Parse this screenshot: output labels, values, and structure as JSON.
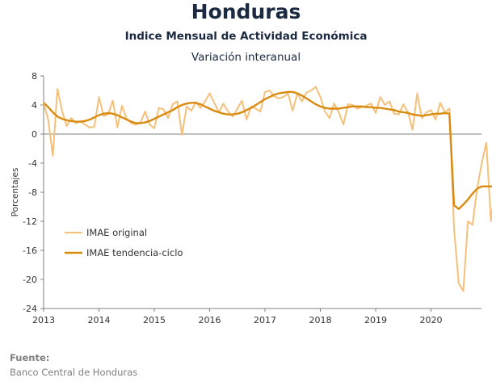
{
  "header": {
    "title": "Honduras",
    "subtitle": "Indice Mensual de  Actividad Económica",
    "subtitle2": "Variación interanual"
  },
  "source": {
    "label": "Fuente:",
    "text": "Banco Central de Honduras"
  },
  "colors": {
    "original": "#f5c07a",
    "trend": "#d98a10",
    "axis": "#808080",
    "text": "#1b2a40"
  },
  "chart_data": {
    "type": "line",
    "title": "Honduras",
    "ylabel": "Porcentajes",
    "xlabel": "",
    "ylim": [
      -24,
      8
    ],
    "yticks": [
      8,
      4,
      0,
      -4,
      -8,
      -12,
      -16,
      -20,
      -24
    ],
    "xticks": [
      "2013",
      "2014",
      "2015",
      "2016",
      "2017",
      "2018",
      "2019",
      "2020"
    ],
    "x_start_year": 2013,
    "grid": false,
    "legend_position": "lower-left",
    "series": [
      {
        "name": "IMAE original",
        "values": [
          4.2,
          2.0,
          -3.0,
          6.2,
          3.2,
          1.1,
          2.2,
          1.5,
          1.8,
          1.3,
          0.9,
          1.0,
          5.1,
          2.5,
          2.7,
          4.6,
          0.9,
          3.9,
          2.1,
          1.5,
          1.3,
          1.6,
          3.1,
          1.3,
          0.8,
          3.6,
          3.4,
          2.2,
          4.1,
          4.5,
          -0.1,
          3.8,
          3.2,
          4.4,
          3.6,
          4.5,
          5.6,
          4.3,
          3.0,
          4.2,
          3.1,
          2.4,
          3.5,
          4.6,
          2.0,
          3.8,
          3.5,
          3.1,
          5.8,
          6.0,
          5.2,
          4.9,
          5.1,
          5.6,
          3.2,
          5.6,
          4.5,
          5.7,
          6.0,
          6.5,
          5.1,
          3.1,
          2.2,
          4.2,
          3.0,
          1.3,
          4.1,
          4.0,
          3.5,
          3.7,
          3.9,
          4.2,
          2.9,
          5.1,
          4.0,
          4.5,
          2.8,
          2.7,
          4.1,
          3.0,
          0.6,
          5.6,
          2.2,
          3.0,
          3.3,
          2.0,
          4.3,
          3.0,
          3.5,
          -13.0,
          -20.5,
          -21.6,
          -12.0,
          -12.5,
          -7.5,
          -4.0,
          -1.2,
          -12.0,
          -6.4
        ]
      },
      {
        "name": "IMAE tendencia-ciclo",
        "values": [
          4.3,
          3.7,
          3.0,
          2.4,
          2.1,
          1.9,
          1.8,
          1.7,
          1.7,
          1.8,
          2.0,
          2.3,
          2.6,
          2.8,
          2.9,
          2.8,
          2.6,
          2.3,
          2.0,
          1.7,
          1.5,
          1.5,
          1.6,
          1.8,
          2.1,
          2.4,
          2.7,
          3.0,
          3.3,
          3.7,
          4.0,
          4.2,
          4.3,
          4.3,
          4.1,
          3.8,
          3.5,
          3.2,
          3.0,
          2.8,
          2.7,
          2.7,
          2.8,
          3.0,
          3.3,
          3.6,
          4.0,
          4.4,
          4.8,
          5.1,
          5.4,
          5.6,
          5.7,
          5.8,
          5.8,
          5.6,
          5.3,
          4.9,
          4.5,
          4.1,
          3.8,
          3.6,
          3.5,
          3.5,
          3.5,
          3.6,
          3.7,
          3.8,
          3.8,
          3.8,
          3.7,
          3.7,
          3.6,
          3.6,
          3.5,
          3.4,
          3.3,
          3.1,
          3.0,
          2.9,
          2.7,
          2.6,
          2.5,
          2.6,
          2.7,
          2.8,
          2.8,
          2.9,
          2.8,
          -9.8,
          -10.3,
          -9.7,
          -9.0,
          -8.2,
          -7.5,
          -7.2,
          -7.2,
          -7.2,
          -7.2
        ]
      }
    ]
  }
}
